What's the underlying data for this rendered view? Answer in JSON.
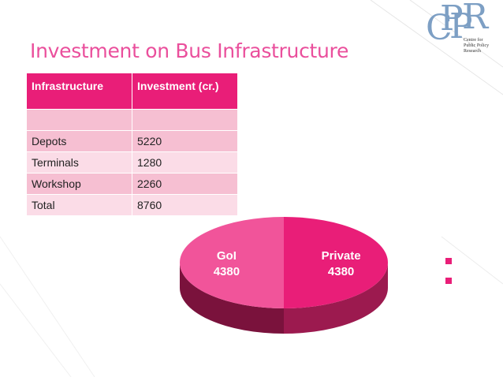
{
  "logo": {
    "letters": [
      "C",
      "P",
      "P",
      "R"
    ],
    "subtitle_line1": "Centre for",
    "subtitle_line2": "Public Policy Research"
  },
  "title": "Investment on Bus Infrastructure",
  "table": {
    "headers": [
      "Infrastructure",
      "Investment (cr.)"
    ],
    "rows": [
      [
        "",
        ""
      ],
      [
        "Depots",
        "5220"
      ],
      [
        "Terminals",
        "1280"
      ],
      [
        "Workshop",
        "2260"
      ],
      [
        "Total",
        "8760"
      ]
    ]
  },
  "chart_data": {
    "type": "pie",
    "categories": [
      "Private",
      "GoI"
    ],
    "values": [
      4380,
      4380
    ],
    "data_labels": [
      {
        "name": "Private",
        "value": "4380"
      },
      {
        "name": "GoI",
        "value": "4380"
      }
    ],
    "colors": {
      "private": "#e91e78",
      "goi": "#f1549a",
      "side": "#9c1a4f",
      "side_dark": "#7a123c"
    },
    "legend": "right",
    "legend_entries": [
      "",
      ""
    ]
  },
  "colors": {
    "accent": "#e91e78",
    "title": "#ea4f9c",
    "row_a": "#f6bfd2",
    "row_b": "#fbdce7",
    "logo": "#7d9fc4"
  }
}
